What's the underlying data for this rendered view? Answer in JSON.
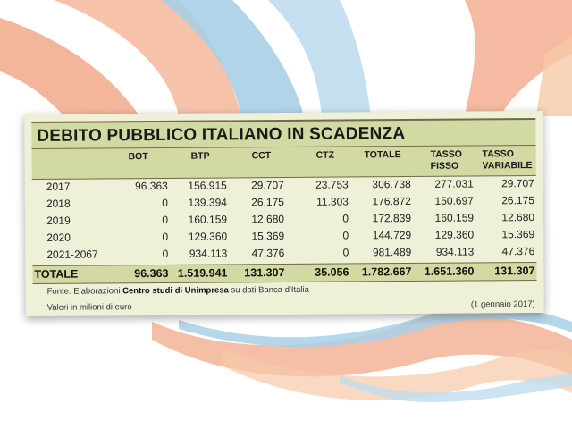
{
  "chart_data": {
    "type": "table",
    "title": "DEBITO PUBBLICO ITALIANO IN SCADENZA",
    "columns": [
      "BOT",
      "BTP",
      "CCT",
      "CTZ",
      "TOTALE",
      "TASSO FISSO",
      "TASSO VARIABILE"
    ],
    "rows": [
      {
        "year": "2017",
        "values": [
          "96.363",
          "156.915",
          "29.707",
          "23.753",
          "306.738",
          "277.031",
          "29.707"
        ]
      },
      {
        "year": "2018",
        "values": [
          "0",
          "139.394",
          "26.175",
          "11.303",
          "176.872",
          "150.697",
          "26.175"
        ]
      },
      {
        "year": "2019",
        "values": [
          "0",
          "160.159",
          "12.680",
          "0",
          "172.839",
          "160.159",
          "12.680"
        ]
      },
      {
        "year": "2020",
        "values": [
          "0",
          "129.360",
          "15.369",
          "0",
          "144.729",
          "129.360",
          "15.369"
        ]
      },
      {
        "year": "2021-2067",
        "values": [
          "0",
          "934.113",
          "47.376",
          "0",
          "981.489",
          "934.113",
          "47.376"
        ]
      }
    ],
    "total": {
      "label": "TOTALE",
      "values": [
        "96.363",
        "1.519.941",
        "131.307",
        "35.056",
        "1.782.667",
        "1.651.360",
        "131.307"
      ]
    },
    "source_prefix": "Fonte. Elaborazioni",
    "source_bold": "Centro studi di Unimpresa",
    "source_suffix": "su dati Banca d'Italia",
    "units_note": "Valori in milioni di euro",
    "date_note": "(1 gennaio 2017)"
  },
  "colors": {
    "band": "#d3d9a3",
    "card": "#eef0d8",
    "swirl_orange": "#f2a98a",
    "swirl_blue": "#a9cfe6",
    "swirl_peach": "#f6c9a8"
  }
}
